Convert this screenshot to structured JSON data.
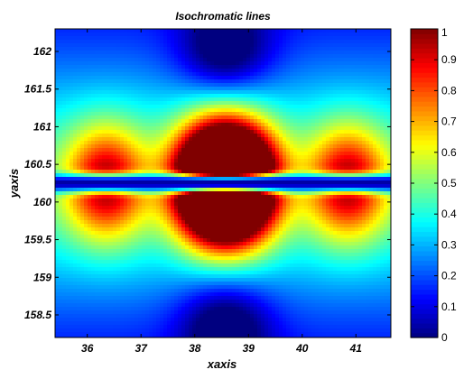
{
  "chart_data": {
    "type": "heatmap",
    "title": "Isochromatic lines",
    "xlabel": "xaxis",
    "ylabel": "yaxis",
    "xlim": [
      35.4,
      41.65
    ],
    "ylim": [
      158.2,
      162.3
    ],
    "xticks": [
      "36",
      "37",
      "38",
      "39",
      "40",
      "41"
    ],
    "yticks": [
      "158.5",
      "159",
      "159.5",
      "160",
      "160.5",
      "161",
      "161.5",
      "162"
    ],
    "colorbar": {
      "colormap": "jet",
      "range": [
        0,
        1
      ],
      "ticks": [
        "0",
        "0.1",
        "0.2",
        "0.3",
        "0.4",
        "0.5",
        "0.6",
        "0.7",
        "0.8",
        "0.9",
        "1"
      ]
    },
    "field": {
      "y_center": 160.25,
      "sources": [
        {
          "x": 36.35,
          "strength": 0.55
        },
        {
          "x": 38.3,
          "strength": 1.1
        },
        {
          "x": 38.85,
          "strength": 1.1
        },
        {
          "x": 40.85,
          "strength": 0.55
        }
      ]
    },
    "colors": {
      "background": "#ffffff",
      "frame": "#000000"
    }
  }
}
